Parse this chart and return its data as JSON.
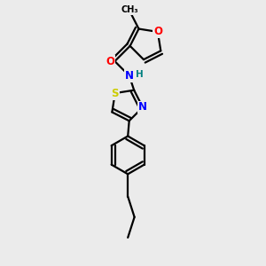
{
  "bg_color": "#ebebeb",
  "atom_colors": {
    "O": "#ff0000",
    "N": "#0000ff",
    "S": "#cccc00",
    "C": "#000000",
    "H": "#008080"
  },
  "font_size": 8.5,
  "lw": 1.6
}
